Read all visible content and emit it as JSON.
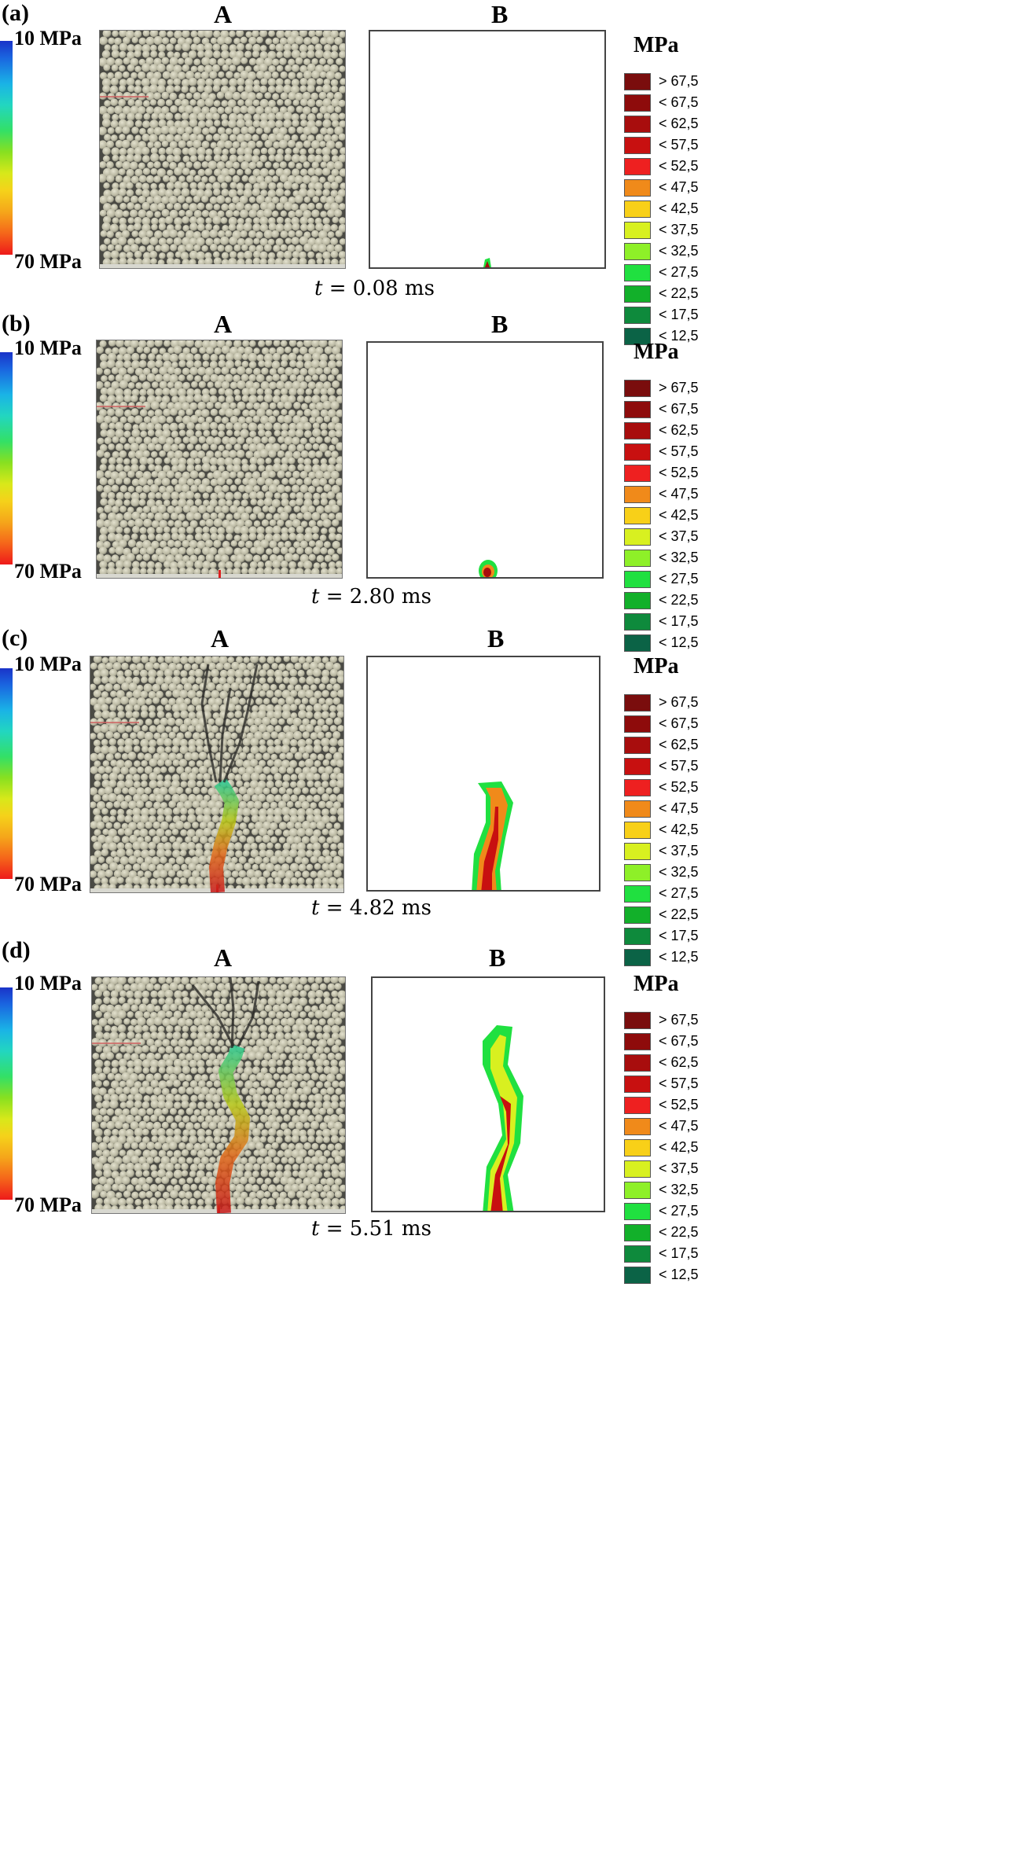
{
  "colorbar": {
    "top_label": "10 MPa",
    "bottom_label": "70 MPa"
  },
  "column_labels": {
    "a": "A",
    "b": "B"
  },
  "legend": {
    "title": "MPa",
    "entries": [
      {
        "label": "> 67,5",
        "color": "#7a0d0d"
      },
      {
        "label": "< 67,5",
        "color": "#8e0b0b"
      },
      {
        "label": "< 62,5",
        "color": "#a80d0d"
      },
      {
        "label": "< 57,5",
        "color": "#c81010"
      },
      {
        "label": "< 52,5",
        "color": "#ee2020"
      },
      {
        "label": "< 47,5",
        "color": "#f08a1a"
      },
      {
        "label": "< 42,5",
        "color": "#f8d018"
      },
      {
        "label": "< 37,5",
        "color": "#d8f020"
      },
      {
        "label": "< 32,5",
        "color": "#8ef028"
      },
      {
        "label": "< 27,5",
        "color": "#20e040"
      },
      {
        "label": "< 22,5",
        "color": "#12b02a"
      },
      {
        "label": "< 17,5",
        "color": "#0e8a3c"
      },
      {
        "label": "< 12,5",
        "color": "#0b6346"
      }
    ]
  },
  "panels": [
    {
      "tag": "(a)",
      "time_var": "t",
      "time_value": "= 0.08 ms",
      "stage": 0
    },
    {
      "tag": "(b)",
      "time_var": "t",
      "time_value": "= 2.80 ms",
      "stage": 1
    },
    {
      "tag": "(c)",
      "time_var": "t",
      "time_value": "= 4.82 ms",
      "stage": 2
    },
    {
      "tag": "(d)",
      "time_var": "t",
      "time_value": "= 5.51 ms",
      "stage": 3
    }
  ]
}
